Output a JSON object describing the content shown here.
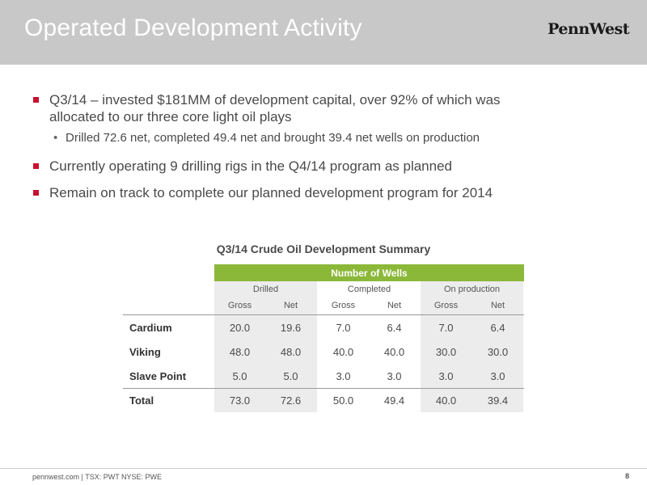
{
  "slide": {
    "title": "Operated Development Activity",
    "logo": "PennWest",
    "accent_color": "#c8102e",
    "header_green": "#8cb83a"
  },
  "bullets": {
    "b1_line1": "Q3/14 – invested $181MM of development capital, over 92% of which was",
    "b1_line2": "allocated to our three core light oil plays",
    "b1_sub": "Drilled 72.6 net, completed 49.4 net and brought 39.4 net wells on production",
    "b2": "Currently operating 9 drilling rigs in the Q4/14 program as planned",
    "b3": "Remain on track to complete our planned development program for 2014"
  },
  "table": {
    "title": "Q3/14 Crude Oil Development Summary",
    "top_header": "Number of Wells",
    "groups": [
      "Drilled",
      "Completed",
      "On production"
    ],
    "subheaders": [
      "Gross",
      "Net",
      "Gross",
      "Net",
      "Gross",
      "Net"
    ],
    "rows": [
      {
        "label": "Cardium",
        "values": [
          "20.0",
          "19.6",
          "7.0",
          "6.4",
          "7.0",
          "6.4"
        ]
      },
      {
        "label": "Viking",
        "values": [
          "48.0",
          "48.0",
          "40.0",
          "40.0",
          "30.0",
          "30.0"
        ]
      },
      {
        "label": "Slave Point",
        "values": [
          "5.0",
          "5.0",
          "3.0",
          "3.0",
          "3.0",
          "3.0"
        ]
      },
      {
        "label": "Total",
        "values": [
          "73.0",
          "72.6",
          "50.0",
          "49.4",
          "40.0",
          "39.4"
        ]
      }
    ]
  },
  "footer": {
    "text": "pennwest.com | TSX: PWT  NYSE: PWE",
    "page_number": "8"
  }
}
